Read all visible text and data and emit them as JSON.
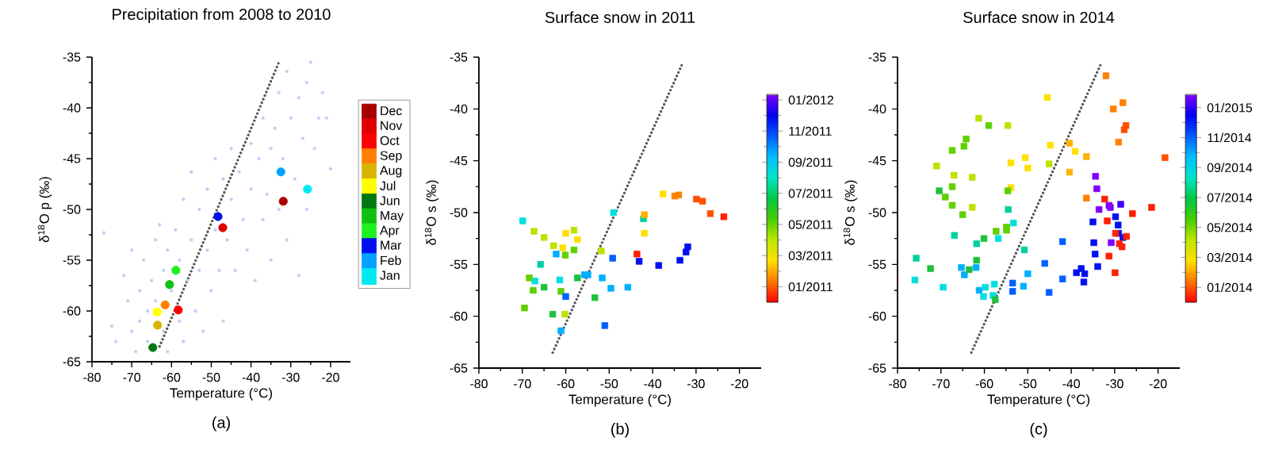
{
  "chart_data": [
    {
      "type": "scatter",
      "title": "Precipitation from 2008 to 2010",
      "xlabel": "Temperature (°C)",
      "ylabel": "δ$^{18}$O p (‰)",
      "annotations": [
        "(a)"
      ],
      "xlim": [
        -80,
        -15
      ],
      "ylim": [
        -65,
        -35
      ],
      "xticks": [
        -80,
        -70,
        -60,
        -50,
        -40,
        -30,
        -20
      ],
      "yticks": [
        -65,
        -60,
        -55,
        -50,
        -45,
        -40,
        -35
      ],
      "marker": "circle",
      "legend": "right",
      "series": [
        {
          "color": "#c3cff2",
          "x": [
            -77,
            -75,
            -74,
            -72,
            -71,
            -70,
            -70,
            -69,
            -68,
            -68,
            -67,
            -66,
            -66,
            -65,
            -64,
            -64,
            -63,
            -62,
            -62,
            -61,
            -61,
            -60,
            -59,
            -58,
            -58,
            -57,
            -57,
            -56,
            -55,
            -55,
            -54,
            -53,
            -53,
            -52,
            -51,
            -51,
            -50,
            -49,
            -49,
            -48,
            -47,
            -47,
            -46,
            -45,
            -45,
            -44,
            -43,
            -42,
            -41,
            -40,
            -40,
            -39,
            -38,
            -37,
            -37,
            -36,
            -35,
            -35,
            -34,
            -33,
            -33,
            -32,
            -31,
            -31,
            -30,
            -29,
            -28,
            -28,
            -27,
            -26,
            -26,
            -25,
            -24,
            -23,
            -22,
            -21,
            -20
          ],
          "values": [
            -52.3,
            -61.5,
            -63,
            -56.5,
            -59,
            -62,
            -54,
            -64,
            -58,
            -61,
            -55,
            -60,
            -63,
            -57,
            -53,
            -59,
            -51.5,
            -56,
            -62,
            -54,
            -64,
            -58,
            -52,
            -61,
            -55,
            -49,
            -63,
            -57,
            -46.3,
            -53,
            -60,
            -50,
            -56,
            -62,
            -48,
            -54,
            -58,
            -45,
            -52,
            -56,
            -47,
            -61,
            -53,
            -44,
            -49,
            -56,
            -46.3,
            -51,
            -54,
            -43.5,
            -48,
            -57,
            -45,
            -41,
            -51,
            -48.5,
            -44,
            -55,
            -42,
            -38.5,
            -50,
            -45,
            -36.4,
            -53,
            -41,
            -47,
            -39,
            -56.5,
            -43,
            -37.5,
            -50,
            -35.5,
            -44,
            -41,
            -38.5,
            -41,
            -46
          ]
        },
        {
          "name": "Jan",
          "color": "#00e8f0",
          "x": [
            -25.8
          ],
          "values": [
            -48.0
          ]
        },
        {
          "name": "Feb",
          "color": "#00a2ff",
          "x": [
            -32.5
          ],
          "values": [
            -46.3
          ]
        },
        {
          "name": "Mar",
          "color": "#0010f0",
          "x": [
            -48.3
          ],
          "values": [
            -50.7
          ]
        },
        {
          "name": "Apr",
          "color": "#20f020",
          "x": [
            -58.9
          ],
          "values": [
            -56.0
          ]
        },
        {
          "name": "May",
          "color": "#10c010",
          "x": [
            -60.5
          ],
          "values": [
            -57.4
          ]
        },
        {
          "name": "Jun",
          "color": "#007a10",
          "x": [
            -64.7
          ],
          "values": [
            -63.6
          ]
        },
        {
          "name": "Jul",
          "color": "#ffff00",
          "x": [
            -63.6
          ],
          "values": [
            -60.1
          ]
        },
        {
          "name": "Aug",
          "color": "#d8b400",
          "x": [
            -63.5
          ],
          "values": [
            -61.4
          ]
        },
        {
          "name": "Sep",
          "color": "#ff8000",
          "x": [
            -61.6
          ],
          "values": [
            -59.4
          ]
        },
        {
          "name": "Oct",
          "color": "#ff0000",
          "x": [
            -58.3
          ],
          "values": [
            -59.9
          ]
        },
        {
          "name": "Nov",
          "color": "#e00000",
          "x": [
            -47.1
          ],
          "values": [
            -51.8
          ]
        },
        {
          "name": "Dec",
          "color": "#a80000",
          "x": [
            -31.9
          ],
          "values": [
            -49.2
          ]
        },
        {
          "type": "line",
          "color": "#555555",
          "line_style": "dotted",
          "marker": "none",
          "x": [
            -63,
            -33
          ],
          "values": [
            -63.5,
            -35.5
          ]
        }
      ]
    },
    {
      "type": "scatter",
      "title": "Surface snow in 2011",
      "xlabel": "Temperature (°C)",
      "ylabel": "δ$^{18}$O s (‰)",
      "annotations": [
        "(b)"
      ],
      "xlim": [
        -80,
        -15
      ],
      "ylim": [
        -65,
        -35
      ],
      "xticks": [
        -80,
        -70,
        -60,
        -50,
        -40,
        -30,
        -20
      ],
      "yticks": [
        -65,
        -60,
        -55,
        -50,
        -45,
        -40,
        -35
      ],
      "marker": "square",
      "clim": [
        0,
        13.35
      ],
      "cticks": [
        {
          "value": 1,
          "label": "01/2011"
        },
        {
          "value": 3,
          "label": "03/2011"
        },
        {
          "value": 5,
          "label": "05/2011"
        },
        {
          "value": 7,
          "label": "07/2011"
        },
        {
          "value": 9,
          "label": "09/2011"
        },
        {
          "value": 11,
          "label": "11/2011"
        },
        {
          "value": 13,
          "label": "01/2012"
        }
      ],
      "series": [
        {
          "x": [
            -69.9,
            -67.3,
            -65.0,
            -62.8,
            -60.7,
            -60.0,
            -58.1,
            -57.3,
            -62.2,
            -60.1,
            -58.1,
            -65.8,
            -67.1,
            -68.4,
            -67.5,
            -65.0,
            -61.4,
            -61.1,
            -60.0,
            -57.3,
            -69.5,
            -63.0,
            -60.2,
            -61.1,
            -55.7,
            -54.9,
            -53.3,
            -51.8,
            -51.6,
            -51.0,
            -49.6,
            -49.2,
            -49.0,
            -45.7,
            -43.6,
            -43.1,
            -42.1,
            -41.9,
            -41.9,
            -37.6,
            -38.6,
            -34.9,
            -34.0,
            -33.7,
            -32.3,
            -31.9,
            -29.9,
            -28.5,
            -26.7,
            -23.6
          ],
          "values": [
            -50.8,
            -51.8,
            -52.4,
            -53.2,
            -53.4,
            -52.0,
            -51.7,
            -52.6,
            -54.0,
            -54.1,
            -53.6,
            -55.0,
            -56.6,
            -56.3,
            -57.5,
            -57.2,
            -56.5,
            -57.6,
            -58.1,
            -56.3,
            -59.2,
            -59.8,
            -59.8,
            -61.4,
            -56.0,
            -56.0,
            -58.2,
            -53.7,
            -56.3,
            -60.9,
            -57.3,
            -54.4,
            -50.0,
            -57.2,
            -54.0,
            -54.7,
            -50.6,
            -52.0,
            -50.2,
            -48.2,
            -55.1,
            -48.4,
            -48.3,
            -54.6,
            -53.8,
            -53.3,
            -48.7,
            -48.9,
            -50.1,
            -50.4
          ],
          "colors": [
            "#00e0e0",
            "#c0e000",
            "#c0e000",
            "#c0e000",
            "#ffe000",
            "#ffe000",
            "#c0e000",
            "#ffe000",
            "#00b0ff",
            "#60d000",
            "#60d000",
            "#00d0a0",
            "#00e0e0",
            "#60d000",
            "#60d000",
            "#20c040",
            "#00e0e0",
            "#60d000",
            "#0060ff",
            "#20c040",
            "#60d000",
            "#20c040",
            "#c0e000",
            "#00b0ff",
            "#00b0ff",
            "#00b0ff",
            "#20c040",
            "#c0e000",
            "#00b0ff",
            "#0060ff",
            "#00b0ff",
            "#0060ff",
            "#00e0e0",
            "#00b0ff",
            "#ff2000",
            "#0010f0",
            "#00d0a0",
            "#ffe000",
            "#ffb000",
            "#ffe000",
            "#0010f0",
            "#ff8000",
            "#ff8000",
            "#0010f0",
            "#0010f0",
            "#0010f0",
            "#ff5000",
            "#ff5000",
            "#ff5000",
            "#ff2000"
          ]
        },
        {
          "type": "line",
          "color": "#555555",
          "line_style": "dotted",
          "marker": "none",
          "x": [
            -63,
            -33
          ],
          "values": [
            -63.5,
            -35.5
          ]
        }
      ]
    },
    {
      "type": "scatter",
      "title": "Surface snow in 2014",
      "xlabel": "Temperature (°C)",
      "ylabel": "δ$^{18}$O s (‰)",
      "annotations": [
        "(c)"
      ],
      "xlim": [
        -80,
        -15
      ],
      "ylim": [
        -65,
        -35
      ],
      "xticks": [
        -80,
        -70,
        -60,
        -50,
        -40,
        -30,
        -20
      ],
      "yticks": [
        -65,
        -60,
        -55,
        -50,
        -45,
        -40,
        -35
      ],
      "marker": "square",
      "clim": [
        0,
        13.88
      ],
      "cticks": [
        {
          "value": 1,
          "label": "01/2014"
        },
        {
          "value": 3,
          "label": "03/2014"
        },
        {
          "value": 5,
          "label": "05/2014"
        },
        {
          "value": 7,
          "label": "07/2014"
        },
        {
          "value": 9,
          "label": "09/2014"
        },
        {
          "value": 11,
          "label": "11/2014"
        },
        {
          "value": 13,
          "label": "01/2015"
        }
      ],
      "series": [
        {
          "x": [
            -32.0,
            -30.3,
            -28.1,
            -27.8,
            -27.4,
            -29.1,
            -18.4,
            -45.5,
            -44.8,
            -40.4,
            -39.1,
            -36.5,
            -40.4,
            -36.5,
            -50.6,
            -50.0,
            -53.9,
            -53.9,
            -61.3,
            -59.0,
            -54.6,
            -64.2,
            -64.7,
            -67.4,
            -71.0,
            -67.0,
            -62.8,
            -67.4,
            -70.4,
            -69.0,
            -67.4,
            -62.8,
            -65.0,
            -54.6,
            -45.1,
            -54.5,
            -66.9,
            -57.3,
            -54.9,
            -54.9,
            -60.1,
            -61.8,
            -56.8,
            -53.3,
            -50.8,
            -75.7,
            -72.4,
            -65.3,
            -64.6,
            -63.5,
            -61.8,
            -61.9,
            -76.0,
            -69.5,
            -61.2,
            -59.8,
            -57.7,
            -58.0,
            -60.2,
            -57.5,
            -53.5,
            -53.5,
            -50.0,
            -51.0,
            -46.1,
            -45.1,
            -42.0,
            -42.0,
            -38.8,
            -37.7,
            -36.9,
            -37.1,
            -35.0,
            -34.8,
            -34.5,
            -33.9,
            -34.4,
            -34.1,
            -33.6,
            -31.3,
            -31.0,
            -28.6,
            -29.8,
            -29.2,
            -29.1,
            -30.8,
            -28.1,
            -32.3,
            -31.7,
            -31.3,
            -29.8,
            -28.9,
            -28.3,
            -27.3,
            -25.9,
            -21.5,
            -29.9
          ],
          "values": [
            -36.8,
            -40.0,
            -39.4,
            -42.0,
            -41.6,
            -43.2,
            -44.7,
            -38.9,
            -43.5,
            -43.3,
            -44.1,
            -44.6,
            -46.1,
            -48.6,
            -44.7,
            -45.7,
            -45.2,
            -47.6,
            -40.9,
            -41.6,
            -41.6,
            -42.9,
            -43.6,
            -44.0,
            -45.5,
            -46.4,
            -46.6,
            -47.5,
            -47.9,
            -48.5,
            -49.3,
            -49.5,
            -50.2,
            -47.9,
            -45.3,
            -49.7,
            -52.2,
            -51.8,
            -51.4,
            -51.7,
            -52.5,
            -53.0,
            -52.5,
            -51.0,
            -53.6,
            -54.4,
            -55.4,
            -55.3,
            -56.0,
            -55.5,
            -54.6,
            -55.3,
            -56.5,
            -57.2,
            -57.5,
            -57.2,
            -56.9,
            -58.0,
            -58.1,
            -58.4,
            -56.8,
            -57.6,
            -55.9,
            -57.1,
            -54.9,
            -57.7,
            -52.8,
            -56.4,
            -55.8,
            -55.4,
            -55.9,
            -56.7,
            -50.9,
            -52.9,
            -54.0,
            -55.2,
            -46.5,
            -47.7,
            -49.7,
            -49.3,
            -49.5,
            -49.2,
            -50.4,
            -51.2,
            -52.0,
            -52.9,
            -52.4,
            -48.7,
            -50.8,
            -54.2,
            -52.0,
            -53.0,
            -53.3,
            -52.3,
            -50.1,
            -49.5,
            -55.8
          ],
          "colors": [
            "#ff8000",
            "#ff8000",
            "#ff8000",
            "#ff5000",
            "#ff5000",
            "#ff8000",
            "#ff5000",
            "#ffe000",
            "#ffe000",
            "#ffb000",
            "#ffe000",
            "#ffb000",
            "#ffb000",
            "#ff8000",
            "#ffe000",
            "#ffe000",
            "#ffe000",
            "#ffe000",
            "#c0e000",
            "#60d000",
            "#c0e000",
            "#60d000",
            "#60d000",
            "#60d000",
            "#c0e000",
            "#c0e000",
            "#c0e000",
            "#60d000",
            "#20c040",
            "#60d000",
            "#60d000",
            "#c0e000",
            "#60d000",
            "#60d000",
            "#c0e000",
            "#00d0a0",
            "#00d0a0",
            "#60d000",
            "#60d000",
            "#60d000",
            "#20c040",
            "#00d0a0",
            "#00e0e0",
            "#00e0e0",
            "#00d0a0",
            "#00d0a0",
            "#20c040",
            "#00b0ff",
            "#00b0ff",
            "#20c040",
            "#20c040",
            "#00b0ff",
            "#00e0e0",
            "#00e0e0",
            "#00b0ff",
            "#00e0e0",
            "#00e0e0",
            "#00e0e0",
            "#00e0e0",
            "#20c040",
            "#0060ff",
            "#0060ff",
            "#00b0ff",
            "#00b0ff",
            "#0060ff",
            "#0060ff",
            "#0060ff",
            "#0060ff",
            "#0010f0",
            "#0010f0",
            "#0010f0",
            "#0010f0",
            "#0010f0",
            "#0010f0",
            "#0010f0",
            "#0010f0",
            "#8000ff",
            "#8000ff",
            "#8000ff",
            "#8000ff",
            "#8000ff",
            "#4000ff",
            "#0010f0",
            "#0010f0",
            "#0010f0",
            "#8000ff",
            "#0010f0",
            "#ff2000",
            "#ff2000",
            "#ff2000",
            "#ff2000",
            "#ff2000",
            "#ff2000",
            "#ff2000",
            "#ff2000",
            "#ff2000",
            "#ff2000"
          ]
        },
        {
          "type": "line",
          "color": "#555555",
          "line_style": "dotted",
          "marker": "none",
          "x": [
            -63,
            -33
          ],
          "values": [
            -63.5,
            -35.5
          ]
        }
      ]
    }
  ]
}
